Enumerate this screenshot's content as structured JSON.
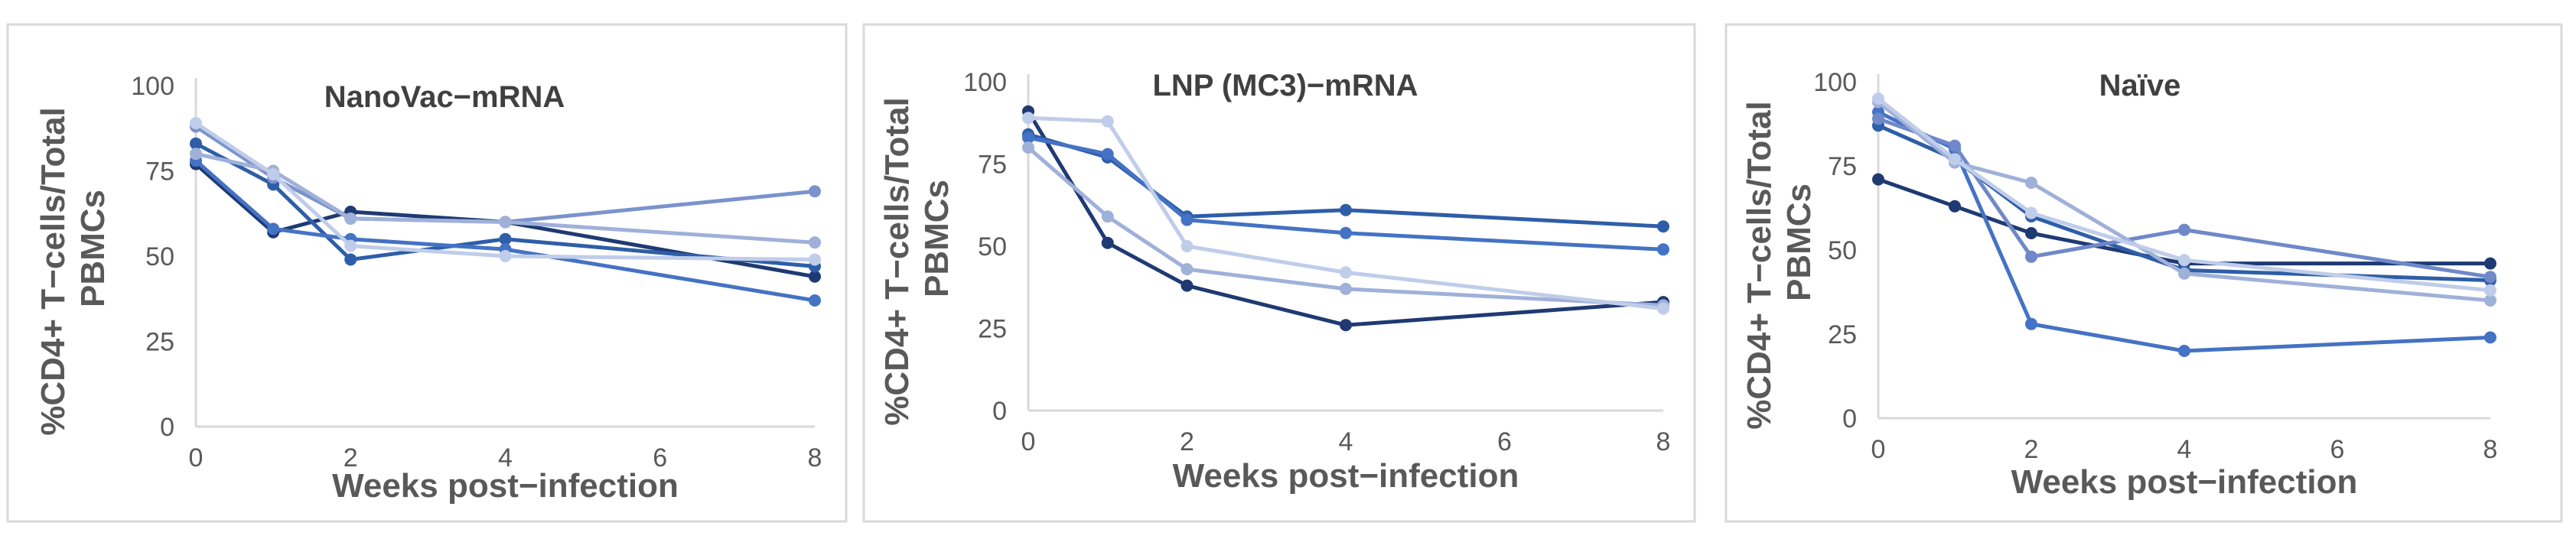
{
  "chart_data": [
    {
      "type": "line",
      "title": "NanoVac−mRNA",
      "xlabel": "Weeks post−infection",
      "ylabel_lines": [
        "%CD4+ T−cells/Total",
        "PBMCs"
      ],
      "x_ticks": [
        "0",
        "2",
        "4",
        "6",
        "8"
      ],
      "y_ticks": [
        "0",
        "25",
        "50",
        "75",
        "100"
      ],
      "xlim": [
        0,
        8
      ],
      "ylim": [
        0,
        100
      ],
      "grid": false,
      "legend": "none",
      "series": [
        {
          "color": "#1f3a73",
          "points": [
            [
              0,
              77
            ],
            [
              1,
              57
            ],
            [
              2,
              63
            ],
            [
              4,
              60
            ],
            [
              8,
              44
            ]
          ]
        },
        {
          "color": "#2e5ea8",
          "points": [
            [
              0,
              83
            ],
            [
              1,
              71
            ],
            [
              2,
              49
            ],
            [
              4,
              55
            ],
            [
              8,
              47
            ]
          ]
        },
        {
          "color": "#4472c4",
          "points": [
            [
              0,
              78
            ],
            [
              1,
              58
            ],
            [
              2,
              55
            ],
            [
              4,
              52
            ],
            [
              8,
              37
            ]
          ]
        },
        {
          "color": "#7b93cc",
          "points": [
            [
              0,
              88
            ],
            [
              1,
              73
            ],
            [
              2,
              61
            ],
            [
              4,
              60
            ],
            [
              8,
              69
            ]
          ]
        },
        {
          "color": "#9fb0d9",
          "points": [
            [
              0,
              80
            ],
            [
              1,
              75
            ],
            [
              2,
              61
            ],
            [
              4,
              60
            ],
            [
              8,
              54
            ]
          ]
        },
        {
          "color": "#bfcdea",
          "points": [
            [
              0,
              89
            ],
            [
              1,
              74
            ],
            [
              2,
              53
            ],
            [
              4,
              50
            ],
            [
              8,
              49
            ]
          ]
        }
      ]
    },
    {
      "type": "line",
      "title": "LNP (MC3)−mRNA",
      "xlabel": "Weeks post−infection",
      "ylabel_lines": [
        "%CD4+ T−cells/Total",
        "PBMCs"
      ],
      "x_ticks": [
        "0",
        "2",
        "4",
        "6",
        "8"
      ],
      "y_ticks": [
        "0",
        "25",
        "50",
        "75",
        "100"
      ],
      "xlim": [
        0,
        8
      ],
      "ylim": [
        0,
        100
      ],
      "grid": false,
      "legend": "none",
      "series": [
        {
          "color": "#1f3a73",
          "points": [
            [
              0,
              91
            ],
            [
              1,
              51
            ],
            [
              2,
              38
            ],
            [
              4,
              26
            ],
            [
              8,
              33
            ]
          ]
        },
        {
          "color": "#2e5ea8",
          "points": [
            [
              0,
              84
            ],
            [
              1,
              77
            ],
            [
              2,
              59
            ],
            [
              4,
              61
            ],
            [
              8,
              56
            ]
          ]
        },
        {
          "color": "#4472c4",
          "points": [
            [
              0,
              83
            ],
            [
              1,
              78
            ],
            [
              2,
              58
            ],
            [
              4,
              54
            ],
            [
              8,
              49
            ]
          ]
        },
        {
          "color": "#9fb0d9",
          "points": [
            [
              0,
              80
            ],
            [
              1,
              59
            ],
            [
              2,
              43
            ],
            [
              4,
              37
            ],
            [
              8,
              32
            ]
          ]
        },
        {
          "color": "#bfcdea",
          "points": [
            [
              0,
              89
            ],
            [
              1,
              88
            ],
            [
              2,
              50
            ],
            [
              4,
              42
            ],
            [
              8,
              31
            ]
          ]
        }
      ]
    },
    {
      "type": "line",
      "title": "Naïve",
      "xlabel": "Weeks post−infection",
      "ylabel_lines": [
        "%CD4+ T−cells/Total",
        "PBMCs"
      ],
      "x_ticks": [
        "0",
        "2",
        "4",
        "6",
        "8"
      ],
      "y_ticks": [
        "0",
        "25",
        "50",
        "75",
        "100"
      ],
      "xlim": [
        0,
        8
      ],
      "ylim": [
        0,
        100
      ],
      "grid": false,
      "legend": "none",
      "series": [
        {
          "color": "#1f3a73",
          "points": [
            [
              0,
              71
            ],
            [
              1,
              63
            ],
            [
              2,
              55
            ],
            [
              4,
              46
            ],
            [
              8,
              46
            ]
          ]
        },
        {
          "color": "#2e5ea8",
          "points": [
            [
              0,
              87
            ],
            [
              1,
              77
            ],
            [
              2,
              60
            ],
            [
              4,
              44
            ],
            [
              8,
              41
            ]
          ]
        },
        {
          "color": "#4472c4",
          "points": [
            [
              0,
              91
            ],
            [
              1,
              80
            ],
            [
              2,
              28
            ],
            [
              4,
              20
            ],
            [
              8,
              24
            ]
          ]
        },
        {
          "color": "#6f88c9",
          "points": [
            [
              0,
              89
            ],
            [
              1,
              81
            ],
            [
              2,
              48
            ],
            [
              4,
              56
            ],
            [
              8,
              42
            ]
          ]
        },
        {
          "color": "#9fb0d9",
          "points": [
            [
              0,
              94
            ],
            [
              1,
              76
            ],
            [
              2,
              70
            ],
            [
              4,
              43
            ],
            [
              8,
              35
            ]
          ]
        },
        {
          "color": "#bfcdea",
          "points": [
            [
              0,
              95
            ],
            [
              1,
              77
            ],
            [
              2,
              61
            ],
            [
              4,
              47
            ],
            [
              8,
              38
            ]
          ]
        }
      ]
    }
  ]
}
